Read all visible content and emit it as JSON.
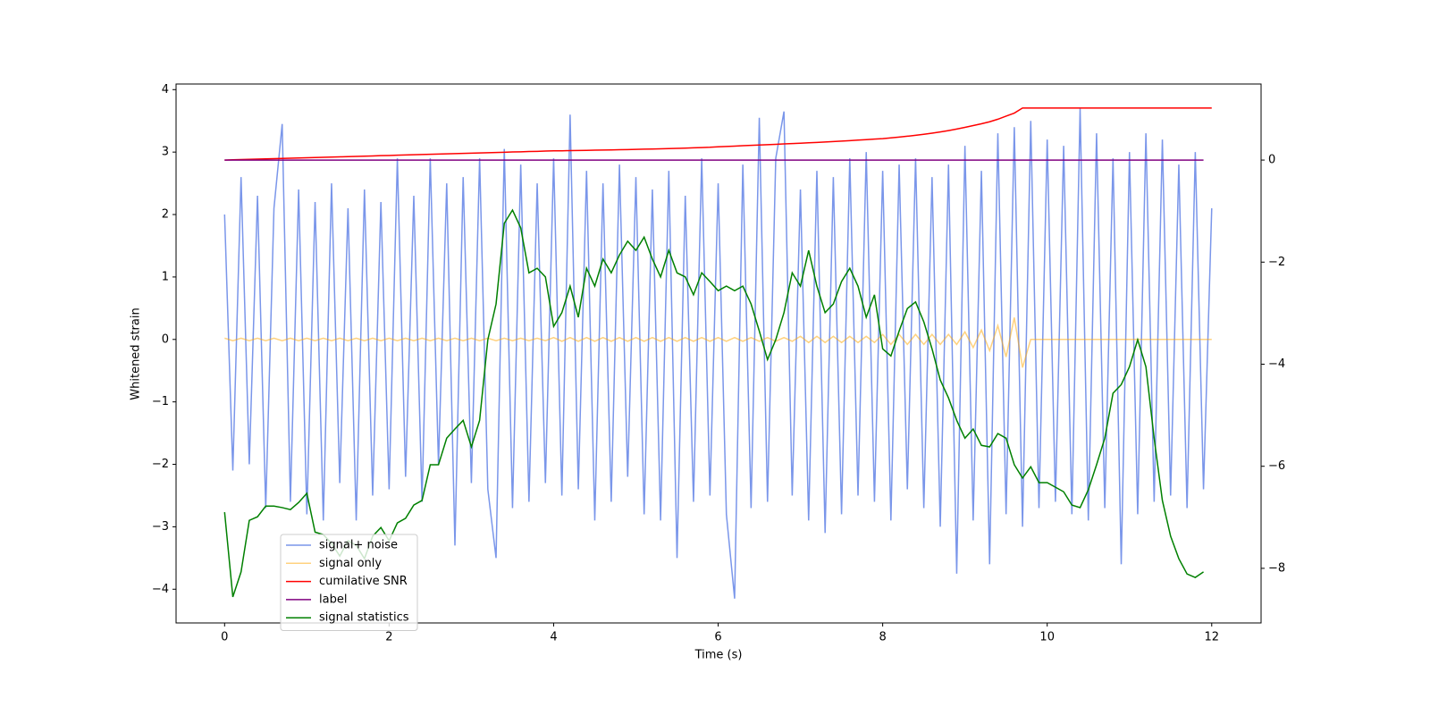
{
  "chart_data": {
    "type": "line",
    "x_label": "Time (s)",
    "y_label": "Whitened strain",
    "xlim": [
      -0.59,
      12.6
    ],
    "ylim": [
      -4.54,
      4.09
    ],
    "y2lim": [
      -9.07,
      1.49
    ],
    "xticks": [
      0,
      2,
      4,
      6,
      8,
      10,
      12
    ],
    "yticks": [
      {
        "value": -4,
        "label": "−4"
      },
      {
        "value": -3,
        "label": "−3"
      },
      {
        "value": -2,
        "label": "−2"
      },
      {
        "value": -1,
        "label": "−1"
      },
      0,
      1,
      2,
      3,
      4
    ],
    "y2ticks": [
      {
        "value": -8,
        "label": "−8"
      },
      {
        "value": -6,
        "label": "−6"
      },
      {
        "value": -4,
        "label": "−4"
      },
      {
        "value": -2,
        "label": "−2"
      },
      0
    ],
    "legend": "lower left",
    "x": [
      0,
      0.1,
      0.2,
      0.3,
      0.4,
      0.5,
      0.6,
      0.7,
      0.8,
      0.9,
      1,
      1.1,
      1.2,
      1.3,
      1.4,
      1.5,
      1.6,
      1.7,
      1.8,
      1.9,
      2,
      2.1,
      2.2,
      2.3,
      2.4,
      2.5,
      2.6,
      2.7,
      2.8,
      2.9,
      3,
      3.1,
      3.2,
      3.3,
      3.4,
      3.5,
      3.6,
      3.7,
      3.8,
      3.9,
      4,
      4.1,
      4.2,
      4.3,
      4.4,
      4.5,
      4.6,
      4.7,
      4.8,
      4.9,
      5,
      5.1,
      5.2,
      5.3,
      5.4,
      5.5,
      5.6,
      5.7,
      5.8,
      5.9,
      6,
      6.1,
      6.2,
      6.3,
      6.4,
      6.5,
      6.6,
      6.7,
      6.8,
      6.9,
      7,
      7.1,
      7.2,
      7.3,
      7.4,
      7.5,
      7.6,
      7.7,
      7.8,
      7.9,
      8,
      8.1,
      8.2,
      8.3,
      8.4,
      8.5,
      8.6,
      8.7,
      8.8,
      8.9,
      9,
      9.1,
      9.2,
      9.3,
      9.4,
      9.5,
      9.6,
      9.7,
      9.8,
      9.9,
      10,
      10.1,
      10.2,
      10.3,
      10.4,
      10.5,
      10.6,
      10.7,
      10.8,
      10.9,
      11,
      11.1,
      11.2,
      11.3,
      11.4,
      11.5,
      11.6,
      11.7,
      11.8,
      11.9,
      12
    ],
    "series": [
      {
        "name": "signal+ noise",
        "color": "#4169e1",
        "opacity": 0.7,
        "values": [
          2.0,
          -2.1,
          2.6,
          -2.0,
          2.3,
          -2.7,
          2.1,
          3.45,
          -2.6,
          2.4,
          -2.8,
          2.2,
          -2.9,
          2.5,
          -2.3,
          2.1,
          -2.9,
          2.4,
          -2.5,
          2.2,
          -2.4,
          2.9,
          -2.2,
          2.3,
          -2.6,
          2.9,
          -2.0,
          2.5,
          -3.3,
          2.6,
          -2.3,
          2.9,
          -2.4,
          -3.5,
          3.05,
          -2.7,
          2.8,
          -2.6,
          2.5,
          -2.3,
          2.9,
          -2.5,
          3.6,
          -2.4,
          2.7,
          -2.9,
          2.5,
          -2.6,
          2.8,
          -2.2,
          2.6,
          -2.8,
          2.4,
          -2.9,
          2.7,
          -3.5,
          2.3,
          -2.6,
          2.9,
          -2.5,
          2.5,
          -2.8,
          -4.15,
          2.8,
          -2.7,
          3.55,
          -2.6,
          2.9,
          3.65,
          -2.5,
          2.4,
          -2.9,
          2.7,
          -3.1,
          2.6,
          -2.8,
          2.9,
          -2.5,
          3.0,
          -2.6,
          2.7,
          -2.9,
          2.8,
          -2.4,
          2.9,
          -2.7,
          2.6,
          -3.0,
          2.8,
          -3.75,
          3.1,
          -2.9,
          2.7,
          -3.6,
          3.3,
          -2.8,
          3.4,
          -3.0,
          3.5,
          -2.7,
          3.2,
          -2.6,
          3.1,
          -2.8,
          3.7,
          -2.9,
          3.3,
          -2.7,
          2.9,
          -3.6,
          3.0,
          -2.8,
          3.3,
          -2.6,
          3.2,
          -2.5,
          2.8,
          -2.7,
          3.0,
          -2.4,
          2.1
        ]
      },
      {
        "name": "signal only",
        "color": "orange",
        "opacity": 0.5,
        "values": [
          0.02,
          -0.02,
          0.02,
          -0.02,
          0.02,
          -0.02,
          0.02,
          -0.02,
          0.02,
          -0.02,
          0.02,
          -0.02,
          0.02,
          -0.02,
          0.02,
          -0.02,
          0.02,
          -0.02,
          0.02,
          -0.02,
          0.02,
          -0.02,
          0.02,
          -0.02,
          0.02,
          -0.02,
          0.02,
          -0.02,
          0.02,
          -0.02,
          0.02,
          -0.02,
          0.02,
          -0.02,
          0.02,
          -0.02,
          0.02,
          -0.02,
          0.02,
          -0.02,
          0.03,
          -0.03,
          0.03,
          -0.03,
          0.03,
          -0.03,
          0.03,
          -0.03,
          0.03,
          -0.03,
          0.03,
          -0.03,
          0.03,
          -0.03,
          0.03,
          -0.03,
          0.03,
          -0.03,
          0.03,
          -0.03,
          0.03,
          -0.03,
          0.03,
          -0.03,
          0.03,
          -0.03,
          0.03,
          -0.03,
          0.03,
          -0.03,
          0.05,
          -0.05,
          0.05,
          -0.05,
          0.05,
          -0.05,
          0.05,
          -0.05,
          0.05,
          -0.05,
          0.08,
          -0.08,
          0.08,
          -0.08,
          0.08,
          -0.08,
          0.08,
          -0.08,
          0.08,
          -0.08,
          0.12,
          -0.13,
          0.15,
          -0.18,
          0.22,
          -0.28,
          0.35,
          -0.45,
          0,
          0,
          0,
          0,
          0,
          0,
          0,
          0,
          0,
          0,
          0,
          0,
          0,
          0,
          0,
          0,
          0,
          0,
          0,
          0,
          0,
          0,
          0
        ]
      },
      {
        "name": "cumilative SNR",
        "color": "red",
        "opacity": 1,
        "axis": "y2",
        "values": [
          0,
          0.005,
          0.01,
          0.014,
          0.018,
          0.023,
          0.027,
          0.032,
          0.036,
          0.041,
          0.045,
          0.05,
          0.054,
          0.059,
          0.063,
          0.068,
          0.072,
          0.077,
          0.081,
          0.086,
          0.09,
          0.095,
          0.099,
          0.104,
          0.108,
          0.113,
          0.117,
          0.122,
          0.126,
          0.131,
          0.135,
          0.14,
          0.144,
          0.149,
          0.153,
          0.158,
          0.162,
          0.167,
          0.171,
          0.176,
          0.18,
          0.182,
          0.185,
          0.188,
          0.19,
          0.193,
          0.196,
          0.199,
          0.202,
          0.205,
          0.21,
          0.213,
          0.217,
          0.221,
          0.225,
          0.229,
          0.234,
          0.239,
          0.244,
          0.25,
          0.26,
          0.267,
          0.274,
          0.281,
          0.288,
          0.295,
          0.302,
          0.309,
          0.316,
          0.323,
          0.33,
          0.338,
          0.346,
          0.354,
          0.363,
          0.372,
          0.381,
          0.39,
          0.4,
          0.41,
          0.42,
          0.435,
          0.45,
          0.467,
          0.485,
          0.505,
          0.527,
          0.551,
          0.578,
          0.608,
          0.64,
          0.675,
          0.71,
          0.75,
          0.8,
          0.86,
          0.92,
          1.02,
          1.02,
          1.02,
          1.02,
          1.02,
          1.02,
          1.02,
          1.02,
          1.02,
          1.02,
          1.02,
          1.02,
          1.02,
          1.02,
          1.02,
          1.02,
          1.02,
          1.02,
          1.02,
          1.02,
          1.02,
          1.02,
          1.02,
          1.02
        ]
      },
      {
        "name": "label",
        "color": "purple",
        "opacity": 1,
        "axis": "y2",
        "values": [
          0,
          0,
          0,
          0,
          0,
          0,
          0,
          0,
          0,
          0,
          0,
          0,
          0,
          0,
          0,
          0,
          0,
          0,
          0,
          0,
          0,
          0,
          0,
          0,
          0,
          0,
          0,
          0,
          0,
          0,
          0,
          0,
          0,
          0,
          0,
          0,
          0,
          0,
          0,
          0,
          0,
          0,
          0,
          0,
          0,
          0,
          0,
          0,
          0,
          0,
          0,
          0,
          0,
          0,
          0,
          0,
          0,
          0,
          0,
          0,
          0,
          0,
          0,
          0,
          0,
          0,
          0,
          0,
          0,
          0,
          0,
          0,
          0,
          0,
          0,
          0,
          0,
          0,
          0,
          0,
          0,
          0,
          0,
          0,
          0,
          0,
          0,
          0,
          0,
          0,
          0,
          0,
          0,
          0,
          0,
          0,
          0,
          0,
          0,
          0,
          0,
          0,
          0,
          0,
          0,
          0,
          0,
          0,
          0,
          0,
          0,
          0,
          0,
          0,
          0,
          0,
          0,
          0,
          0,
          0,
          null
        ]
      },
      {
        "name": "signal statistics",
        "color": "green",
        "opacity": 1,
        "axis": "y2",
        "values": [
          -6.9,
          -8.56,
          -8.07,
          -7.06,
          -6.99,
          -6.78,
          -6.78,
          -6.81,
          -6.85,
          -6.71,
          -6.53,
          -7.29,
          -7.34,
          -7.51,
          -7.76,
          -7.46,
          -7.55,
          -7.81,
          -7.37,
          -7.2,
          -7.46,
          -7.11,
          -7.02,
          -6.76,
          -6.67,
          -5.97,
          -5.97,
          -5.45,
          -5.27,
          -5.1,
          -5.62,
          -5.1,
          -3.52,
          -2.82,
          -1.24,
          -0.98,
          -1.33,
          -2.21,
          -2.12,
          -2.29,
          -3.26,
          -2.99,
          -2.47,
          -3.08,
          -2.12,
          -2.47,
          -1.94,
          -2.21,
          -1.86,
          -1.59,
          -1.77,
          -1.51,
          -1.94,
          -2.29,
          -1.77,
          -2.21,
          -2.29,
          -2.64,
          -2.21,
          -2.38,
          -2.56,
          -2.47,
          -2.56,
          -2.47,
          -2.82,
          -3.35,
          -3.91,
          -3.52,
          -2.99,
          -2.21,
          -2.47,
          -1.77,
          -2.47,
          -2.99,
          -2.82,
          -2.38,
          -2.12,
          -2.47,
          -3.08,
          -2.64,
          -3.7,
          -3.84,
          -3.35,
          -2.91,
          -2.78,
          -3.17,
          -3.7,
          -4.31,
          -4.66,
          -5.1,
          -5.45,
          -5.27,
          -5.59,
          -5.62,
          -5.36,
          -5.45,
          -5.97,
          -6.23,
          -6.01,
          -6.32,
          -6.32,
          -6.41,
          -6.5,
          -6.76,
          -6.81,
          -6.46,
          -5.97,
          -5.45,
          -4.57,
          -4.4,
          -4.05,
          -3.52,
          -4.05,
          -5.45,
          -6.67,
          -7.37,
          -7.81,
          -8.11,
          -8.18,
          -8.07,
          null
        ]
      }
    ]
  }
}
